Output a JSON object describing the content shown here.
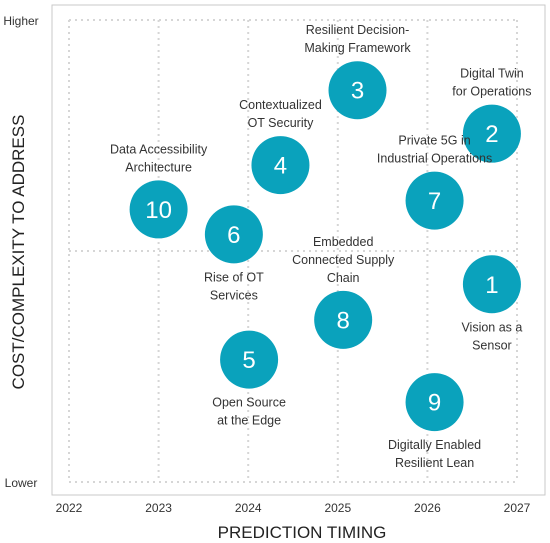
{
  "chart_data": {
    "type": "scatter",
    "xlabel": "PREDICTION TIMING",
    "ylabel": "COST/COMPLEXITY TO ADDRESS",
    "x_ticks": [
      "2022",
      "2023",
      "2024",
      "2025",
      "2026",
      "2027"
    ],
    "x_range": [
      2022,
      2027
    ],
    "y_ticks": [
      "Higher",
      "Lower"
    ],
    "y_range": [
      0,
      10
    ],
    "grid": true,
    "colors": {
      "bubble": "#0aa2bc",
      "grid": "#d6d6d6",
      "frame": "#c9c9c9"
    },
    "points": [
      {
        "id": "1",
        "label": [
          "Vision as a",
          "Sensor"
        ],
        "x": 2026.72,
        "y": 4.28,
        "label_pos": "below"
      },
      {
        "id": "2",
        "label": [
          "Digital Twin",
          "for Operations"
        ],
        "x": 2026.72,
        "y": 7.54,
        "label_pos": "above"
      },
      {
        "id": "3",
        "label": [
          "Resilient Decision-",
          "Making Framework"
        ],
        "x": 2025.22,
        "y": 8.48,
        "label_pos": "above"
      },
      {
        "id": "4",
        "label": [
          "Contextualized",
          "OT Security"
        ],
        "x": 2024.36,
        "y": 6.86,
        "label_pos": "above"
      },
      {
        "id": "5",
        "label": [
          "Open Source",
          "at the Edge"
        ],
        "x": 2024.01,
        "y": 2.65,
        "label_pos": "below"
      },
      {
        "id": "6",
        "label": [
          "Rise of OT",
          "Services"
        ],
        "x": 2023.84,
        "y": 5.36,
        "label_pos": "below"
      },
      {
        "id": "7",
        "label": [
          "Private 5G in",
          "Industrial Operations"
        ],
        "x": 2026.08,
        "y": 6.09,
        "label_pos": "above"
      },
      {
        "id": "8",
        "label": [
          "Embedded",
          "Connected Supply",
          "Chain"
        ],
        "x": 2025.06,
        "y": 3.51,
        "label_pos": "above"
      },
      {
        "id": "9",
        "label": [
          "Digitally Enabled",
          "Resilient Lean"
        ],
        "x": 2026.08,
        "y": 1.73,
        "label_pos": "below"
      },
      {
        "id": "10",
        "label": [
          "Data Accessibility",
          "Architecture"
        ],
        "x": 2023.0,
        "y": 5.9,
        "label_pos": "above"
      }
    ]
  }
}
